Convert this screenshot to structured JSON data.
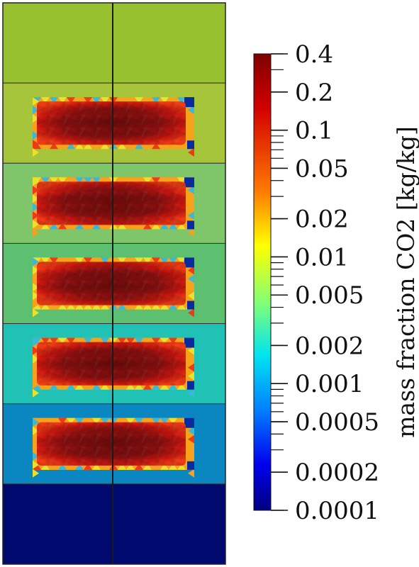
{
  "colorbar": {
    "title": "mass fraction CO2 [kg/kg]",
    "scale": "log",
    "range": [
      0.0001,
      0.4
    ],
    "colormap": "jet",
    "labeled_ticks": [
      {
        "value": 0.4,
        "label": "0.4"
      },
      {
        "value": 0.2,
        "label": "0.2"
      },
      {
        "value": 0.1,
        "label": "0.1"
      },
      {
        "value": 0.05,
        "label": "0.05"
      },
      {
        "value": 0.02,
        "label": "0.02"
      },
      {
        "value": 0.01,
        "label": "0.01"
      },
      {
        "value": 0.005,
        "label": "0.005"
      },
      {
        "value": 0.002,
        "label": "0.002"
      },
      {
        "value": 0.001,
        "label": "0.001"
      },
      {
        "value": 0.0005,
        "label": "0.0005"
      },
      {
        "value": 0.0002,
        "label": "0.0002"
      },
      {
        "value": 0.0001,
        "label": "0.0001"
      }
    ]
  },
  "domain_layers": [
    {
      "name": "layer-1",
      "color": "#97c12f",
      "has_plume": false
    },
    {
      "name": "layer-2",
      "color": "#a6c53a",
      "has_plume": true
    },
    {
      "name": "layer-3",
      "color": "#7fc569",
      "has_plume": true
    },
    {
      "name": "layer-4",
      "color": "#5cc070",
      "has_plume": true
    },
    {
      "name": "layer-5",
      "color": "#21c2b6",
      "has_plume": true
    },
    {
      "name": "layer-6",
      "color": "#0a86c0",
      "has_plume": true
    },
    {
      "name": "layer-7",
      "color": "#000a6e",
      "has_plume": false
    }
  ],
  "plume_colors": {
    "core": "#7a0d0d",
    "mid": "#c0140f",
    "edge": "#ef3a16",
    "fringe_warm": "#f6a21b",
    "fringe_yellow": "#e9e22c",
    "fringe_cool": "#3ab9d6",
    "fringe_dark": "#0a2aa0"
  }
}
